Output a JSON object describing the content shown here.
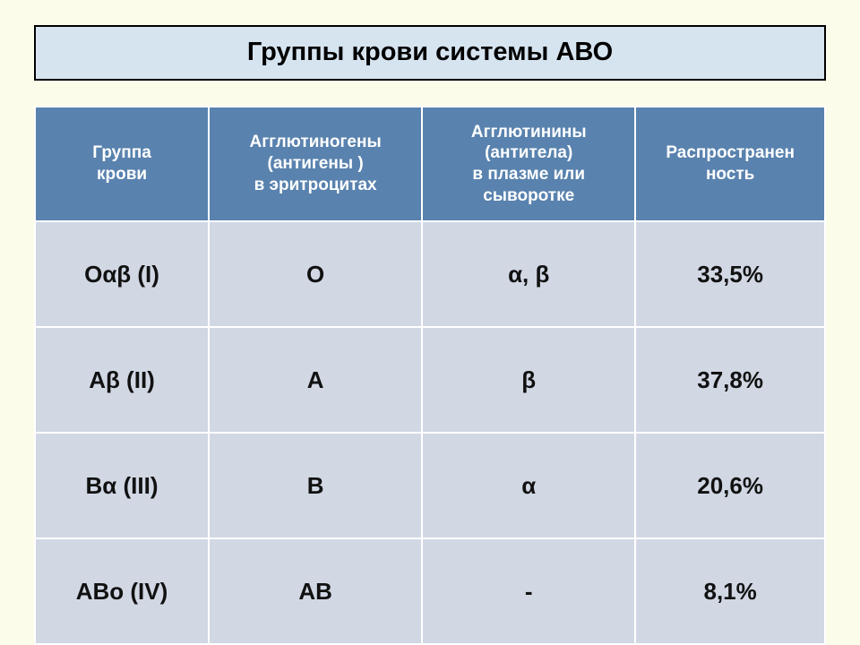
{
  "title": "Группы крови системы АВО",
  "table": {
    "columns": [
      "Группа\nкрови",
      "Агглютиногены\n(антигены )\nв эритроцитах",
      "Агглютинины\n(антитела)\nв плазме или\nсыворотке",
      "Распространен\nность"
    ],
    "rows": [
      [
        "Оαβ (I)",
        "О",
        "α, β",
        "33,5%"
      ],
      [
        "Аβ (II)",
        "А",
        "β",
        "37,8%"
      ],
      [
        "Вα (III)",
        "В",
        "α",
        "20,6%"
      ],
      [
        "АВо (IV)",
        "АВ",
        "-",
        "8,1%"
      ]
    ]
  },
  "style": {
    "page_bg": "#fcfceb",
    "title_bg": "#d6e4f0",
    "title_border": "#000000",
    "header_bg": "#5982ae",
    "header_fg": "#ffffff",
    "cell_bg": "#d1d8e4",
    "cell_border": "#ffffff",
    "title_fontsize": 29,
    "header_fontsize": 19,
    "cell_fontsize": 26
  }
}
